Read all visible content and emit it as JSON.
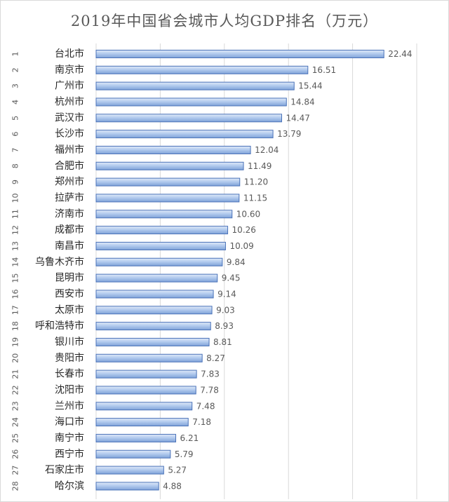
{
  "chart_data": {
    "type": "bar",
    "orientation": "horizontal",
    "title": "2019年中国省会城市人均GDP排名（万元）",
    "xlim": [
      0,
      25
    ],
    "grid": true,
    "ranks": [
      "1",
      "2",
      "3",
      "4",
      "5",
      "6",
      "7",
      "8",
      "9",
      "10",
      "11",
      "12",
      "13",
      "14",
      "15",
      "16",
      "17",
      "18",
      "19",
      "20",
      "21",
      "22",
      "23",
      "24",
      "25",
      "26",
      "27",
      "28"
    ],
    "categories": [
      "台北市",
      "南京市",
      "广州市",
      "杭州市",
      "武汉市",
      "长沙市",
      "福州市",
      "合肥市",
      "郑州市",
      "拉萨市",
      "济南市",
      "成都市",
      "南昌市",
      "乌鲁木齐市",
      "昆明市",
      "西安市",
      "太原市",
      "呼和浩特市",
      "银川市",
      "贵阳市",
      "长春市",
      "沈阳市",
      "兰州市",
      "海口市",
      "南宁市",
      "西宁市",
      "石家庄市",
      "哈尔滨"
    ],
    "values": [
      22.44,
      16.51,
      15.44,
      14.84,
      14.47,
      13.79,
      12.04,
      11.49,
      11.2,
      11.15,
      10.6,
      10.26,
      10.09,
      9.84,
      9.45,
      9.14,
      9.03,
      8.93,
      8.81,
      8.27,
      7.83,
      7.78,
      7.48,
      7.18,
      6.21,
      5.79,
      5.27,
      4.88
    ],
    "value_labels": [
      "22.44",
      "16.51",
      "15.44",
      "14.84",
      "14.47",
      "13.79",
      "12.04",
      "11.49",
      "11.20",
      "11.15",
      "10.60",
      "10.26",
      "10.09",
      "9.84",
      "9.45",
      "9.14",
      "9.03",
      "8.93",
      "8.81",
      "8.27",
      "7.83",
      "7.78",
      "7.48",
      "7.18",
      "6.21",
      "5.79",
      "5.27",
      "4.88"
    ],
    "colors": {
      "bar": "#a9c4eb",
      "bar_edge": "#4a72b8",
      "grid": "#d9d9d9",
      "text": "#404040"
    }
  }
}
